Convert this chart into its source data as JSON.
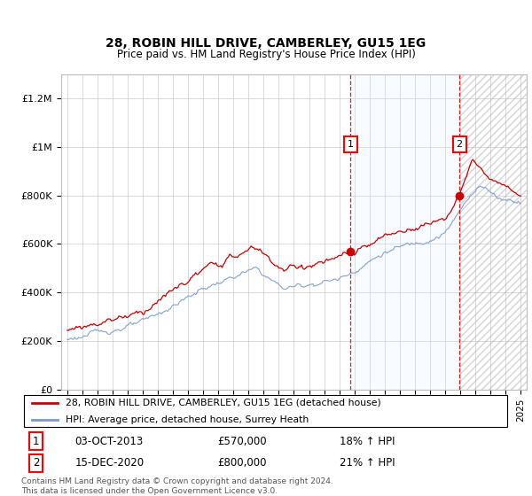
{
  "title": "28, ROBIN HILL DRIVE, CAMBERLEY, GU15 1EG",
  "subtitle": "Price paid vs. HM Land Registry's House Price Index (HPI)",
  "ylim": [
    0,
    1300000
  ],
  "yticks": [
    0,
    200000,
    400000,
    600000,
    800000,
    1000000,
    1200000
  ],
  "ytick_labels": [
    "£0",
    "£200K",
    "£400K",
    "£600K",
    "£800K",
    "£1M",
    "£1.2M"
  ],
  "line1_color": "#cc0000",
  "line2_color": "#7799cc",
  "fill_color": "#ddeeff",
  "sale1_year": 2013.75,
  "sale1_price": 570000,
  "sale1_label": "1",
  "sale1_date": "03-OCT-2013",
  "sale1_hpi": "18% ↑ HPI",
  "sale2_year": 2020.95,
  "sale2_price": 800000,
  "sale2_label": "2",
  "sale2_date": "15-DEC-2020",
  "sale2_hpi": "21% ↑ HPI",
  "legend_line1": "28, ROBIN HILL DRIVE, CAMBERLEY, GU15 1EG (detached house)",
  "legend_line2": "HPI: Average price, detached house, Surrey Heath",
  "footer": "Contains HM Land Registry data © Crown copyright and database right 2024.\nThis data is licensed under the Open Government Licence v3.0.",
  "xlim_left": 1994.6,
  "xlim_right": 2025.4
}
